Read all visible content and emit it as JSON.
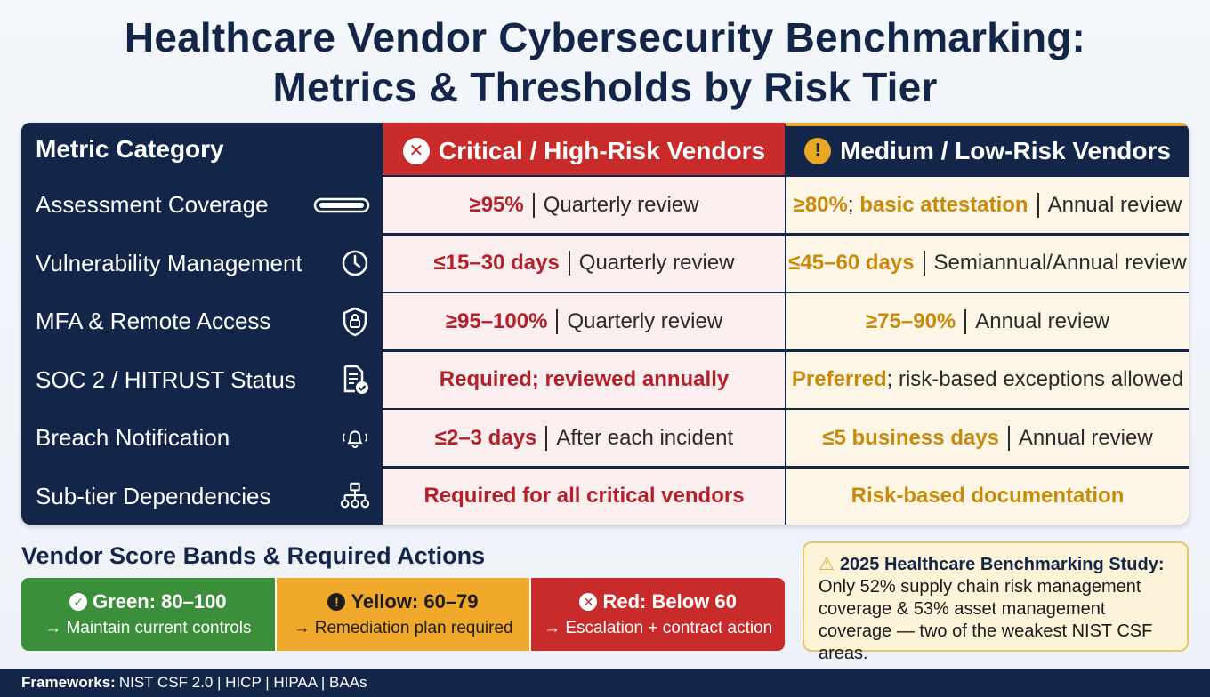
{
  "title_line1": "Healthcare Vendor Cybersecurity Benchmarking:",
  "title_line2": "Metrics & Thresholds by Risk Tier",
  "table": {
    "headers": {
      "metric": "Metric Category",
      "critical": "Critical / High-Risk Vendors",
      "medium": "Medium / Low-Risk Vendors"
    },
    "rows": [
      {
        "metric": "Assessment Coverage",
        "icon": "progress-bar-icon",
        "crit_hl": "≥95%",
        "crit_sep": true,
        "crit_rest": "Quarterly review",
        "med_hl": "≥80%",
        "med_mid": "; ",
        "med_hl2": "basic attestation",
        "med_sep": true,
        "med_rest": "Annual review"
      },
      {
        "metric": "Vulnerability Management",
        "icon": "clock-icon",
        "crit_hl": "≤15–30 days",
        "crit_sep": true,
        "crit_rest": "Quarterly review",
        "med_hl": "≤45–60 days",
        "med_mid": "",
        "med_hl2": "",
        "med_sep": true,
        "med_rest": "Semiannual/Annual review"
      },
      {
        "metric": "MFA & Remote Access",
        "icon": "shield-lock-icon",
        "crit_hl": "≥95–100%",
        "crit_sep": true,
        "crit_rest": "Quarterly review",
        "med_hl": "≥75–90%",
        "med_mid": "",
        "med_hl2": "",
        "med_sep": true,
        "med_rest": "Annual review"
      },
      {
        "metric": "SOC 2 / HITRUST Status",
        "icon": "document-check-icon",
        "crit_hl": "Required; reviewed annually",
        "crit_sep": false,
        "crit_rest": "",
        "med_hl": "Preferred",
        "med_mid": "; risk-based exceptions allowed",
        "med_hl2": "",
        "med_sep": false,
        "med_rest": ""
      },
      {
        "metric": "Breach Notification",
        "icon": "bell-alert-icon",
        "crit_hl": "≤2–3 days",
        "crit_sep": true,
        "crit_rest": "After each incident",
        "med_hl": "≤5 business days",
        "med_mid": "",
        "med_hl2": "",
        "med_sep": true,
        "med_rest": "Annual review"
      },
      {
        "metric": "Sub-tier Dependencies",
        "icon": "hierarchy-icon",
        "crit_hl": "Required for all critical vendors",
        "crit_sep": false,
        "crit_rest": "",
        "med_hl": "Risk-based documentation",
        "med_mid": "",
        "med_hl2": "",
        "med_sep": false,
        "med_rest": ""
      }
    ]
  },
  "bands_title": "Vendor Score Bands & Required Actions",
  "bands": [
    {
      "label": "Green: 80–100",
      "action": "→ Maintain current controls",
      "color": "#3b8f3a",
      "icon": "check-circle-icon"
    },
    {
      "label": "Yellow: 60–79",
      "action": "→ Remediation plan required",
      "color": "#f0a92a",
      "icon": "exclamation-circle-icon"
    },
    {
      "label": "Red: Below 60",
      "action": "→ Escalation + contract action",
      "color": "#c92a2a",
      "icon": "x-circle-icon"
    }
  ],
  "study": {
    "title": "2025 Healthcare Benchmarking Study:",
    "body": "Only 52% supply chain risk management coverage & 53% asset management coverage — two of the weakest NIST CSF areas."
  },
  "footer": {
    "label": "Frameworks:",
    "text": "NIST CSF 2.0 | HICP | HIPAA | BAAs"
  },
  "colors": {
    "navy": "#13264a",
    "critical_red": "#c92a2a",
    "medium_gold": "#e8a724",
    "critical_text": "#b3202a",
    "medium_text": "#c98a0c"
  }
}
